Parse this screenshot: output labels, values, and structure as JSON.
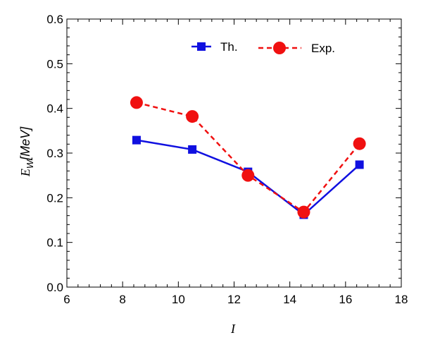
{
  "chart_data": {
    "type": "line",
    "title": "",
    "xlabel": "I",
    "ylabel": {
      "main": "E",
      "sub": "W",
      "rest": "[MeV]"
    },
    "xlim": [
      6,
      18
    ],
    "ylim": [
      0.0,
      0.6
    ],
    "x_ticks": [
      "6",
      "8",
      "10",
      "12",
      "14",
      "16",
      "18"
    ],
    "y_ticks": [
      "0.0",
      "0.1",
      "0.2",
      "0.3",
      "0.4",
      "0.5",
      "0.6"
    ],
    "grid": false,
    "legend_position": "top-right",
    "series": [
      {
        "name": "Th.",
        "color": "#1010e0",
        "marker": "square",
        "line": "solid",
        "x": [
          8.5,
          10.5,
          12.5,
          14.5,
          16.5
        ],
        "y": [
          0.329,
          0.308,
          0.258,
          0.162,
          0.274
        ]
      },
      {
        "name": "Exp.",
        "color": "#f01010",
        "marker": "circle",
        "line": "dashed",
        "x": [
          8.5,
          10.5,
          12.5,
          14.5,
          16.5
        ],
        "y": [
          0.413,
          0.382,
          0.25,
          0.168,
          0.321
        ]
      }
    ]
  }
}
